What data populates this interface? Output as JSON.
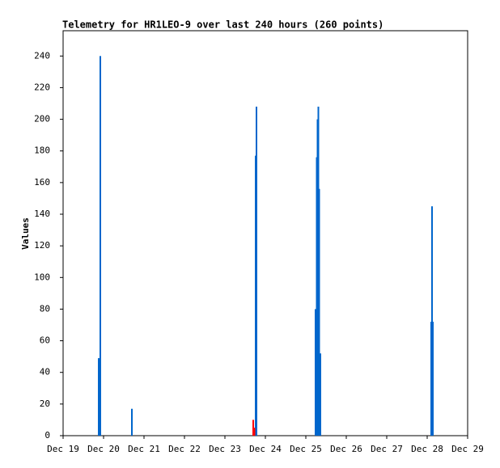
{
  "chart_data": {
    "type": "bar",
    "title": "Telemetry for HR1LEO-9 over last 240 hours (260 points)",
    "y_label": "Values",
    "series": [
      {
        "color": "#0066cc",
        "x": [
          0.88,
          0.92,
          1.7,
          4.76,
          4.78,
          6.24,
          6.27,
          6.29,
          6.31,
          6.33,
          6.36,
          9.1,
          9.12,
          9.14
        ],
        "values": [
          49,
          240,
          17,
          177,
          208,
          80,
          176,
          200,
          208,
          156,
          52,
          72,
          145,
          72
        ]
      },
      {
        "color": "#ff0000",
        "x": [
          4.7,
          4.73
        ],
        "values": [
          10,
          5
        ]
      }
    ],
    "xlim": [
      0,
      10
    ],
    "xticks": [
      {
        "value": 0,
        "label": "Dec 19"
      },
      {
        "value": 1,
        "label": "Dec 20"
      },
      {
        "value": 2,
        "label": "Dec 21"
      },
      {
        "value": 3,
        "label": "Dec 22"
      },
      {
        "value": 4,
        "label": "Dec 23"
      },
      {
        "value": 5,
        "label": "Dec 24"
      },
      {
        "value": 6,
        "label": "Dec 25"
      },
      {
        "value": 7,
        "label": "Dec 26"
      },
      {
        "value": 8,
        "label": "Dec 27"
      },
      {
        "value": 9,
        "label": "Dec 28"
      },
      {
        "value": 10,
        "label": "Dec 29"
      }
    ],
    "ylim": [
      0,
      256
    ],
    "yticks": [
      0,
      20,
      40,
      60,
      80,
      100,
      120,
      140,
      160,
      180,
      200,
      220,
      240
    ]
  }
}
